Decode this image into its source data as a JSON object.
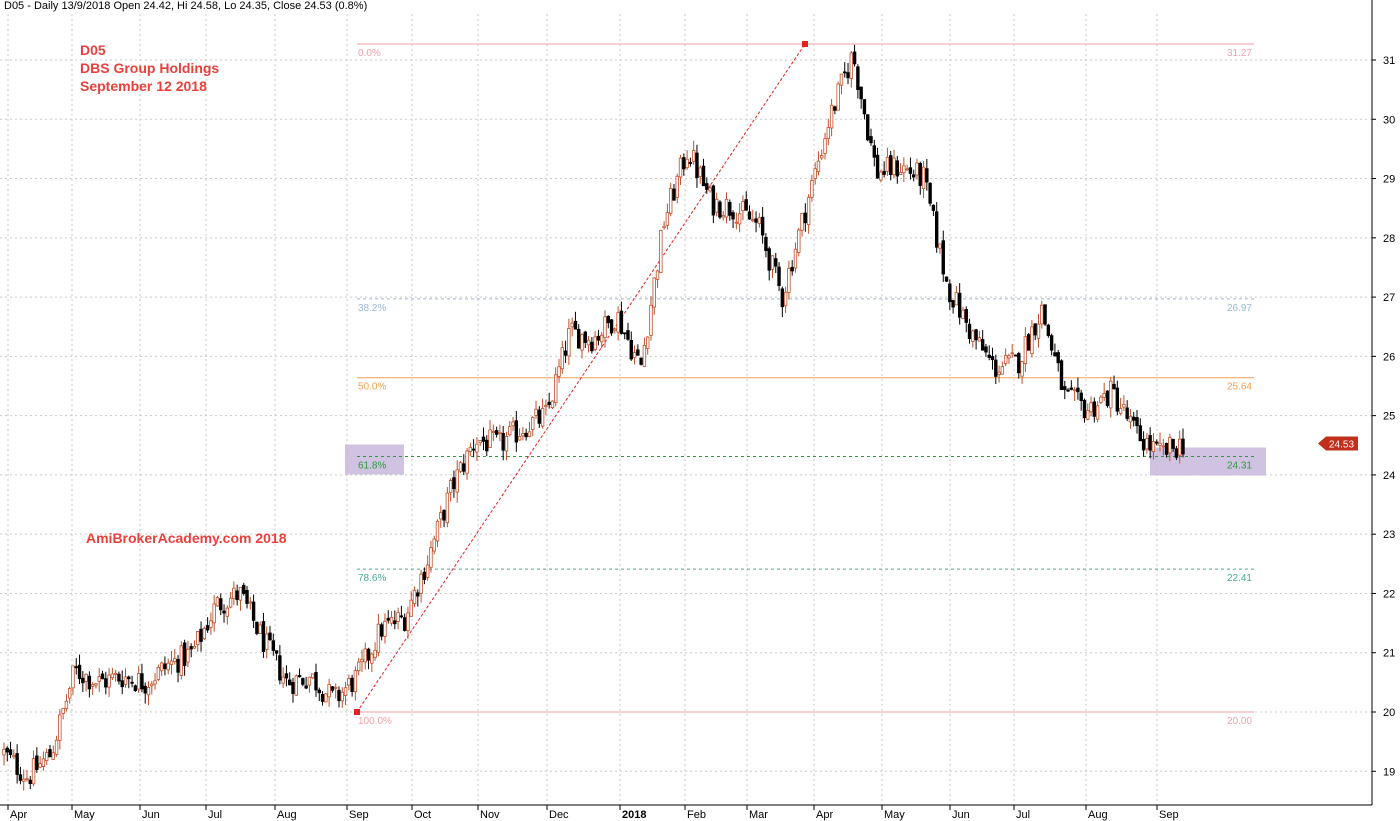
{
  "header": {
    "info": "D05 - Daily 13/9/2018 Open 24.42, Hi 24.58, Lo 24.35, Close 24.53 (0.8%)"
  },
  "annotations": {
    "symbol": "D05",
    "company": "DBS Group Holdings",
    "date": "September 12 2018",
    "watermark": "AmiBrokerAcademy.com   2018"
  },
  "colors": {
    "up_candle": "#c0502a",
    "down_candle": "#000000",
    "grid": "#c9c9c9",
    "fib_0": "#f0a0a8",
    "fib_382": "#9ab8d8",
    "fib_50": "#f0a050",
    "fib_618": "#2a9a3a",
    "fib_786": "#4aaa99",
    "fib_100": "#f0a0a8",
    "highlight": "#c8b8dc",
    "trend": "#e82020",
    "last_price_bg": "#c0301c"
  },
  "chart_data": {
    "type": "candlestick",
    "title": "D05 - Daily 13/9/2018",
    "ylim": [
      18.7,
      31.7
    ],
    "y_ticks": [
      19,
      20,
      21,
      22,
      23,
      24,
      25,
      26,
      27,
      28,
      29,
      30,
      31
    ],
    "x_labels": [
      "Apr",
      "May",
      "Jun",
      "Jul",
      "Aug",
      "Sep",
      "Oct",
      "Nov",
      "Dec",
      "2018",
      "Feb",
      "Mar",
      "Apr",
      "May",
      "Jun",
      "Jul",
      "Aug",
      "Sep"
    ],
    "last_price": "24.53",
    "fib_levels": [
      {
        "pct": "0.0%",
        "value": 31.27
      },
      {
        "pct": "38.2%",
        "value": 26.97
      },
      {
        "pct": "50.0%",
        "value": 25.64
      },
      {
        "pct": "61.8%",
        "value": 24.31
      },
      {
        "pct": "78.6%",
        "value": 22.41
      },
      {
        "pct": "100.0%",
        "value": 20.0
      }
    ],
    "fib_value_labels": [
      "31.27",
      "26.97",
      "25.64",
      "24.31",
      "22.41",
      "20.00"
    ],
    "trendline": {
      "from": {
        "date": "Sep 2017",
        "value": 20.0
      },
      "to": {
        "date": "Apr 2018",
        "value": 31.27
      }
    },
    "price_path": [
      {
        "date": "Apr 2017",
        "close": 19.3
      },
      {
        "date": "Apr 2017",
        "close": 18.9
      },
      {
        "date": "Apr 2017",
        "close": 19.3
      },
      {
        "date": "May 2017",
        "close": 20.7
      },
      {
        "date": "May 2017",
        "close": 20.5
      },
      {
        "date": "Jun 2017",
        "close": 20.6
      },
      {
        "date": "Jun 2017",
        "close": 20.5
      },
      {
        "date": "Jul 2017",
        "close": 20.8
      },
      {
        "date": "Jul 2017",
        "close": 21.0
      },
      {
        "date": "Jul 2017",
        "close": 21.8
      },
      {
        "date": "Aug 2017",
        "close": 22.0
      },
      {
        "date": "Aug 2017",
        "close": 21.2
      },
      {
        "date": "Aug 2017",
        "close": 20.5
      },
      {
        "date": "Sep 2017",
        "close": 20.6
      },
      {
        "date": "Sep 2017",
        "close": 20.2
      },
      {
        "date": "Oct 2017",
        "close": 20.6
      },
      {
        "date": "Oct 2017",
        "close": 21.4
      },
      {
        "date": "Oct 2017",
        "close": 21.6
      },
      {
        "date": "Nov 2017",
        "close": 22.6
      },
      {
        "date": "Nov 2017",
        "close": 23.8
      },
      {
        "date": "Nov 2017",
        "close": 24.6
      },
      {
        "date": "Dec 2017",
        "close": 24.5
      },
      {
        "date": "Dec 2017",
        "close": 24.8
      },
      {
        "date": "Dec 2017",
        "close": 25.0
      },
      {
        "date": "Jan 2018",
        "close": 26.4
      },
      {
        "date": "Jan 2018",
        "close": 26.3
      },
      {
        "date": "Jan 2018",
        "close": 26.7
      },
      {
        "date": "Feb 2018",
        "close": 25.8
      },
      {
        "date": "Feb 2018",
        "close": 28.3
      },
      {
        "date": "Feb 2018",
        "close": 29.5
      },
      {
        "date": "Mar 2018",
        "close": 28.6
      },
      {
        "date": "Mar 2018",
        "close": 28.5
      },
      {
        "date": "Mar 2018",
        "close": 28.2
      },
      {
        "date": "Apr 2018",
        "close": 27.0
      },
      {
        "date": "Apr 2018",
        "close": 28.5
      },
      {
        "date": "Apr 2018",
        "close": 30.0
      },
      {
        "date": "May 2018",
        "close": 31.1
      },
      {
        "date": "May 2018",
        "close": 29.1
      },
      {
        "date": "May 2018",
        "close": 29.2
      },
      {
        "date": "Jun 2018",
        "close": 29.0
      },
      {
        "date": "Jun 2018",
        "close": 27.2
      },
      {
        "date": "Jun 2018",
        "close": 26.4
      },
      {
        "date": "Jul 2018",
        "close": 25.8
      },
      {
        "date": "Jul 2018",
        "close": 25.9
      },
      {
        "date": "Jul 2018",
        "close": 26.8
      },
      {
        "date": "Aug 2018",
        "close": 25.3
      },
      {
        "date": "Aug 2018",
        "close": 25.1
      },
      {
        "date": "Aug 2018",
        "close": 25.4
      },
      {
        "date": "Sep 2018",
        "close": 24.7
      },
      {
        "date": "Sep 2018",
        "close": 24.35
      },
      {
        "date": "Sep 2018",
        "close": 24.53
      }
    ]
  }
}
